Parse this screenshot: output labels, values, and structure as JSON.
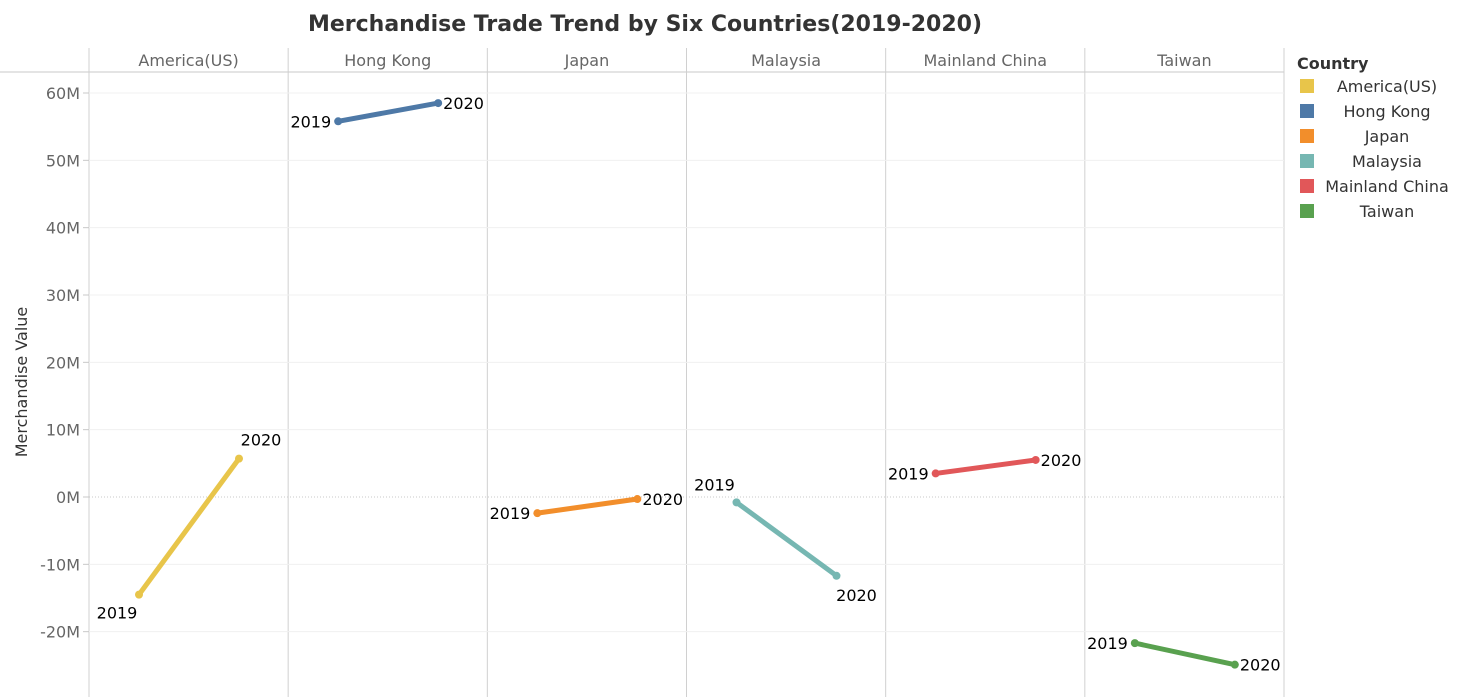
{
  "chart_data": {
    "type": "line",
    "title": "Merchandise Trade Trend  by Six Countries(2019-2020)",
    "ylabel": "Merchandise Value",
    "xlabel": "",
    "ylim": [
      -29,
      63
    ],
    "yticks": [
      {
        "value": 60,
        "label": "60M"
      },
      {
        "value": 50,
        "label": "50M"
      },
      {
        "value": 40,
        "label": "40M"
      },
      {
        "value": 30,
        "label": "30M"
      },
      {
        "value": 20,
        "label": "20M"
      },
      {
        "value": 10,
        "label": "10M"
      },
      {
        "value": 0,
        "label": "0M"
      },
      {
        "value": -10,
        "label": "-10M"
      },
      {
        "value": -20,
        "label": "-20M"
      }
    ],
    "unit": "M",
    "grid": true,
    "legend": {
      "title": "Country",
      "position": "right"
    },
    "panels": [
      {
        "name": "America(US)",
        "color": "#e8c54a",
        "points": [
          {
            "year": "2019",
            "value": -14.5
          },
          {
            "year": "2020",
            "value": 5.7
          }
        ]
      },
      {
        "name": "Hong Kong",
        "color": "#4e79a7",
        "points": [
          {
            "year": "2019",
            "value": 55.8
          },
          {
            "year": "2020",
            "value": 58.5
          }
        ]
      },
      {
        "name": "Japan",
        "color": "#f28e2b",
        "points": [
          {
            "year": "2019",
            "value": -2.4
          },
          {
            "year": "2020",
            "value": -0.3
          }
        ]
      },
      {
        "name": "Malaysia",
        "color": "#76b7b2",
        "points": [
          {
            "year": "2019",
            "value": -0.8
          },
          {
            "year": "2020",
            "value": -11.7
          }
        ]
      },
      {
        "name": "Mainland China",
        "color": "#e15759",
        "points": [
          {
            "year": "2019",
            "value": 3.5
          },
          {
            "year": "2020",
            "value": 5.5
          }
        ]
      },
      {
        "name": "Taiwan",
        "color": "#59a14f",
        "points": [
          {
            "year": "2019",
            "value": -21.7
          },
          {
            "year": "2020",
            "value": -24.9
          }
        ]
      }
    ]
  }
}
